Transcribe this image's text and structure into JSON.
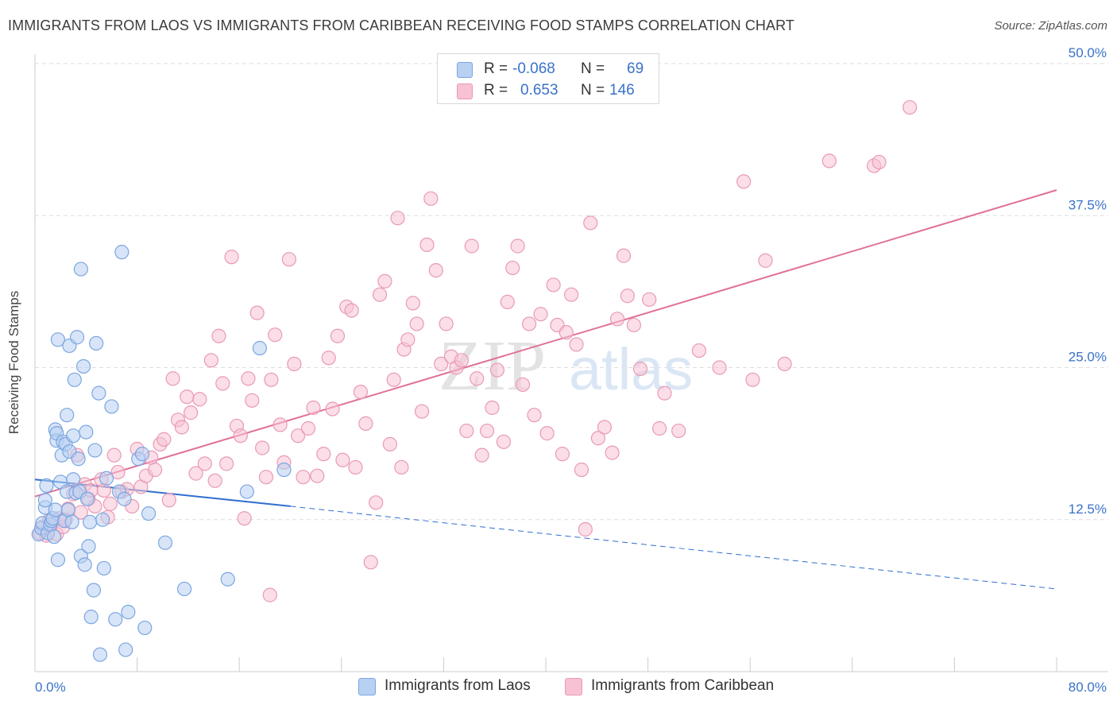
{
  "title": "IMMIGRANTS FROM LAOS VS IMMIGRANTS FROM CARIBBEAN RECEIVING FOOD STAMPS CORRELATION CHART",
  "source": "Source: ZipAtlas.com",
  "watermark": {
    "zip": "ZIP",
    "atlas": "atlas"
  },
  "colors": {
    "laos_fill": "#b8d0f2",
    "laos_stroke": "#7ba6e0",
    "laos_line": "#2f6fd0",
    "carib_fill": "#f7c2d3",
    "carib_stroke": "#e99ab5",
    "carib_line": "#e0709a",
    "value_blue": "#3a72c9",
    "grid": "#dddddd"
  },
  "stats": {
    "rows": [
      {
        "r_label": "R =",
        "r_value": "-0.068",
        "n_label": "N =",
        "n_value": "69"
      },
      {
        "r_label": "R =",
        "r_value": "0.653",
        "n_label": "N =",
        "n_value": "146"
      }
    ]
  },
  "legend": {
    "laos": "Immigrants from Laos",
    "caribbean": "Immigrants from Caribbean"
  },
  "chart_data": {
    "type": "scatter",
    "xlabel": "",
    "ylabel": "Receiving Food Stamps",
    "xlim": [
      0,
      80
    ],
    "ylim": [
      0,
      50
    ],
    "x_tick_labels": [
      "0.0%",
      "80.0%"
    ],
    "y_ticks": [
      12.5,
      25.0,
      37.5,
      50.0
    ],
    "y_tick_labels": [
      "12.5%",
      "25.0%",
      "37.5%",
      "50.0%"
    ],
    "series": [
      {
        "name": "Immigrants from Laos",
        "r": -0.068,
        "n": 69,
        "trend": {
          "solid_x": [
            0,
            20
          ],
          "solid_y": [
            15.8,
            13.6
          ],
          "dashed_x": [
            20,
            80
          ],
          "dashed_y": [
            13.6,
            6.8
          ]
        },
        "points": [
          [
            0.3,
            11.3
          ],
          [
            0.5,
            11.8
          ],
          [
            0.6,
            12.2
          ],
          [
            0.8,
            13.5
          ],
          [
            0.8,
            14.1
          ],
          [
            0.9,
            15.3
          ],
          [
            1.0,
            11.4
          ],
          [
            1.2,
            12.1
          ],
          [
            1.3,
            12.4
          ],
          [
            1.4,
            12.6
          ],
          [
            1.5,
            11.1
          ],
          [
            1.6,
            13.3
          ],
          [
            1.6,
            19.9
          ],
          [
            1.7,
            19.0
          ],
          [
            1.7,
            19.6
          ],
          [
            1.8,
            9.2
          ],
          [
            1.8,
            27.3
          ],
          [
            2.0,
            15.6
          ],
          [
            2.1,
            17.8
          ],
          [
            2.2,
            18.9
          ],
          [
            2.3,
            12.4
          ],
          [
            2.4,
            18.7
          ],
          [
            2.5,
            21.1
          ],
          [
            2.5,
            14.8
          ],
          [
            2.6,
            13.3
          ],
          [
            2.7,
            18.1
          ],
          [
            2.7,
            26.8
          ],
          [
            2.9,
            12.3
          ],
          [
            3.0,
            15.8
          ],
          [
            3.0,
            19.4
          ],
          [
            3.1,
            24.0
          ],
          [
            3.2,
            14.7
          ],
          [
            3.3,
            27.5
          ],
          [
            3.4,
            17.5
          ],
          [
            3.5,
            14.8
          ],
          [
            3.6,
            33.1
          ],
          [
            3.6,
            9.5
          ],
          [
            3.8,
            25.1
          ],
          [
            3.9,
            8.8
          ],
          [
            4.0,
            19.7
          ],
          [
            4.1,
            14.2
          ],
          [
            4.2,
            10.3
          ],
          [
            4.3,
            12.3
          ],
          [
            4.4,
            4.5
          ],
          [
            4.6,
            6.7
          ],
          [
            4.7,
            18.2
          ],
          [
            4.8,
            27.0
          ],
          [
            5.0,
            22.9
          ],
          [
            5.1,
            1.4
          ],
          [
            5.3,
            12.5
          ],
          [
            5.4,
            8.5
          ],
          [
            5.6,
            15.9
          ],
          [
            6.0,
            21.8
          ],
          [
            6.3,
            4.3
          ],
          [
            6.6,
            14.8
          ],
          [
            6.8,
            34.5
          ],
          [
            7.0,
            14.2
          ],
          [
            7.1,
            1.8
          ],
          [
            7.3,
            4.9
          ],
          [
            8.1,
            17.5
          ],
          [
            8.4,
            17.9
          ],
          [
            8.6,
            3.6
          ],
          [
            8.9,
            13.0
          ],
          [
            10.2,
            10.6
          ],
          [
            11.7,
            6.8
          ],
          [
            15.1,
            7.6
          ],
          [
            16.6,
            14.8
          ],
          [
            17.6,
            26.6
          ],
          [
            19.5,
            16.6
          ]
        ]
      },
      {
        "name": "Immigrants from Caribbean",
        "r": 0.653,
        "n": 146,
        "trend": {
          "x": [
            0,
            80
          ],
          "y": [
            14.4,
            39.6
          ]
        },
        "points": [
          [
            0.4,
            11.4
          ],
          [
            0.6,
            11.9
          ],
          [
            0.9,
            11.2
          ],
          [
            1.1,
            12.4
          ],
          [
            1.3,
            12.1
          ],
          [
            1.7,
            11.3
          ],
          [
            1.9,
            12.6
          ],
          [
            2.2,
            11.9
          ],
          [
            2.4,
            12.5
          ],
          [
            2.6,
            13.4
          ],
          [
            3.0,
            14.6
          ],
          [
            3.3,
            17.8
          ],
          [
            3.6,
            13.1
          ],
          [
            3.9,
            15.4
          ],
          [
            4.2,
            14.2
          ],
          [
            4.4,
            14.9
          ],
          [
            4.7,
            13.6
          ],
          [
            5.2,
            15.8
          ],
          [
            5.4,
            14.9
          ],
          [
            5.7,
            12.7
          ],
          [
            5.9,
            13.8
          ],
          [
            6.2,
            17.8
          ],
          [
            6.5,
            16.4
          ],
          [
            6.8,
            14.8
          ],
          [
            7.2,
            15.0
          ],
          [
            7.6,
            13.6
          ],
          [
            8.0,
            18.3
          ],
          [
            8.3,
            15.2
          ],
          [
            8.7,
            16.1
          ],
          [
            9.1,
            17.6
          ],
          [
            9.4,
            16.6
          ],
          [
            9.8,
            18.7
          ],
          [
            10.1,
            19.1
          ],
          [
            10.5,
            14.1
          ],
          [
            10.8,
            24.1
          ],
          [
            11.2,
            20.7
          ],
          [
            11.5,
            20.1
          ],
          [
            11.9,
            22.6
          ],
          [
            12.2,
            21.3
          ],
          [
            12.6,
            16.3
          ],
          [
            12.9,
            22.4
          ],
          [
            13.3,
            17.1
          ],
          [
            13.8,
            25.6
          ],
          [
            14.1,
            15.7
          ],
          [
            14.4,
            27.6
          ],
          [
            14.7,
            23.7
          ],
          [
            15.0,
            17.1
          ],
          [
            15.4,
            34.1
          ],
          [
            15.8,
            20.2
          ],
          [
            16.1,
            19.4
          ],
          [
            16.4,
            12.6
          ],
          [
            16.7,
            24.1
          ],
          [
            17.0,
            22.3
          ],
          [
            17.4,
            29.5
          ],
          [
            17.8,
            18.4
          ],
          [
            18.1,
            16.0
          ],
          [
            18.5,
            24.0
          ],
          [
            18.8,
            27.7
          ],
          [
            19.2,
            20.3
          ],
          [
            19.5,
            17.2
          ],
          [
            19.9,
            33.9
          ],
          [
            20.3,
            25.3
          ],
          [
            20.6,
            19.4
          ],
          [
            21.0,
            16.0
          ],
          [
            21.4,
            20.0
          ],
          [
            21.8,
            21.7
          ],
          [
            22.1,
            16.1
          ],
          [
            22.6,
            17.9
          ],
          [
            23.0,
            25.8
          ],
          [
            23.3,
            21.6
          ],
          [
            23.7,
            27.6
          ],
          [
            24.1,
            17.4
          ],
          [
            24.4,
            30.0
          ],
          [
            24.8,
            29.7
          ],
          [
            25.1,
            16.8
          ],
          [
            25.5,
            23.0
          ],
          [
            25.9,
            20.4
          ],
          [
            26.3,
            9.0
          ],
          [
            26.7,
            13.9
          ],
          [
            27.0,
            31.0
          ],
          [
            27.4,
            32.1
          ],
          [
            27.8,
            18.7
          ],
          [
            28.1,
            24.0
          ],
          [
            28.4,
            37.3
          ],
          [
            28.9,
            26.5
          ],
          [
            29.2,
            27.3
          ],
          [
            29.6,
            30.3
          ],
          [
            29.9,
            28.6
          ],
          [
            30.3,
            21.4
          ],
          [
            30.7,
            35.1
          ],
          [
            31.0,
            38.9
          ],
          [
            31.4,
            33.0
          ],
          [
            31.8,
            25.3
          ],
          [
            32.2,
            28.6
          ],
          [
            32.6,
            25.9
          ],
          [
            33.0,
            25.0
          ],
          [
            33.4,
            25.6
          ],
          [
            33.8,
            19.8
          ],
          [
            34.2,
            35.0
          ],
          [
            34.6,
            24.1
          ],
          [
            35.0,
            17.8
          ],
          [
            35.4,
            19.8
          ],
          [
            35.8,
            21.7
          ],
          [
            36.2,
            24.8
          ],
          [
            36.7,
            18.9
          ],
          [
            37.0,
            30.4
          ],
          [
            37.4,
            33.2
          ],
          [
            37.8,
            35.0
          ],
          [
            38.2,
            23.6
          ],
          [
            38.7,
            28.6
          ],
          [
            39.1,
            21.1
          ],
          [
            39.6,
            29.4
          ],
          [
            40.1,
            19.6
          ],
          [
            40.6,
            31.8
          ],
          [
            40.9,
            28.5
          ],
          [
            41.3,
            17.9
          ],
          [
            41.6,
            27.9
          ],
          [
            42.0,
            31.0
          ],
          [
            42.4,
            26.9
          ],
          [
            42.8,
            16.6
          ],
          [
            43.1,
            11.7
          ],
          [
            43.5,
            36.9
          ],
          [
            44.1,
            19.2
          ],
          [
            44.6,
            20.1
          ],
          [
            45.2,
            18.0
          ],
          [
            45.6,
            29.0
          ],
          [
            46.1,
            34.2
          ],
          [
            46.4,
            30.9
          ],
          [
            46.9,
            28.5
          ],
          [
            47.4,
            24.9
          ],
          [
            48.1,
            30.6
          ],
          [
            48.9,
            20.0
          ],
          [
            49.3,
            22.9
          ],
          [
            50.4,
            19.8
          ],
          [
            52.0,
            26.4
          ],
          [
            53.6,
            25.0
          ],
          [
            55.5,
            40.3
          ],
          [
            56.2,
            24.0
          ],
          [
            57.2,
            33.8
          ],
          [
            58.7,
            25.3
          ],
          [
            62.2,
            42.0
          ],
          [
            65.7,
            41.6
          ],
          [
            66.1,
            41.9
          ],
          [
            68.5,
            46.4
          ],
          [
            28.7,
            16.8
          ],
          [
            18.4,
            6.3
          ]
        ]
      }
    ]
  }
}
